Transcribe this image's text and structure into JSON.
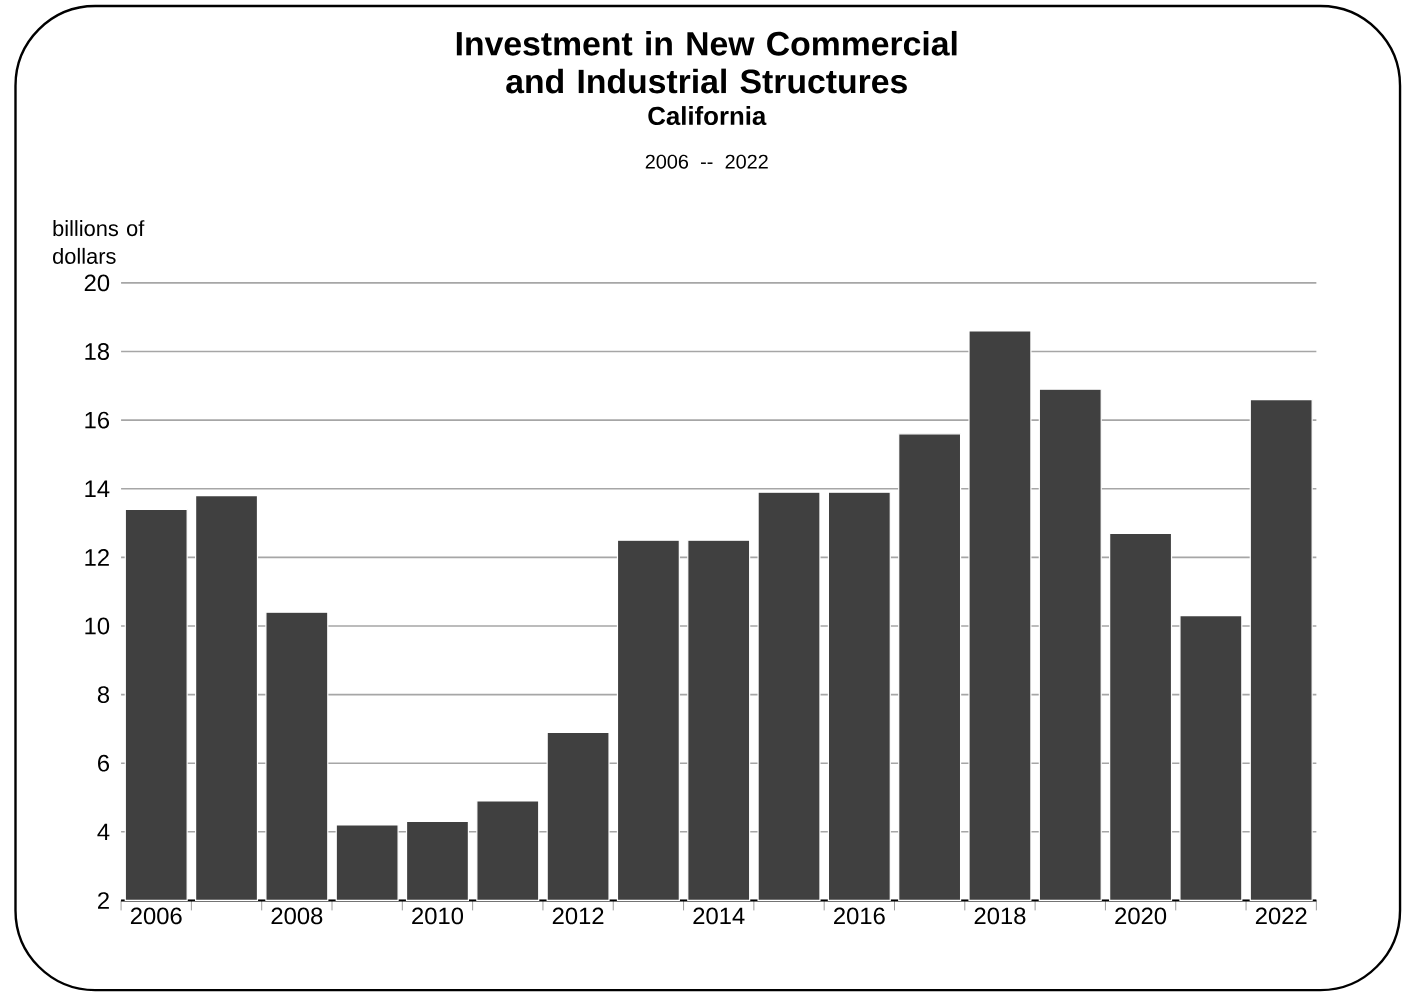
{
  "chart_data": {
    "type": "bar",
    "title": "Investment in New Commercial and Industrial Structures",
    "subtitle": "California",
    "ylabel": "billions of dollars",
    "annotations": [
      "2006 -- 2022"
    ],
    "categories": [
      "2006",
      null,
      "2008",
      null,
      "2010",
      null,
      "2012",
      null,
      "2014",
      null,
      "2016",
      null,
      "2018",
      null,
      "2020",
      null,
      "2022"
    ],
    "values": [
      13.4,
      13.8,
      10.4,
      4.2,
      4.3,
      4.9,
      6.9,
      12.5,
      12.5,
      13.9,
      13.9,
      15.6,
      18.6,
      16.9,
      12.7,
      10.3,
      16.6
    ],
    "color": "#404040",
    "ylim": [
      2,
      20
    ],
    "yticks": [
      2,
      4,
      6,
      8,
      10,
      12,
      14,
      16,
      18,
      20
    ],
    "grid": "y"
  }
}
